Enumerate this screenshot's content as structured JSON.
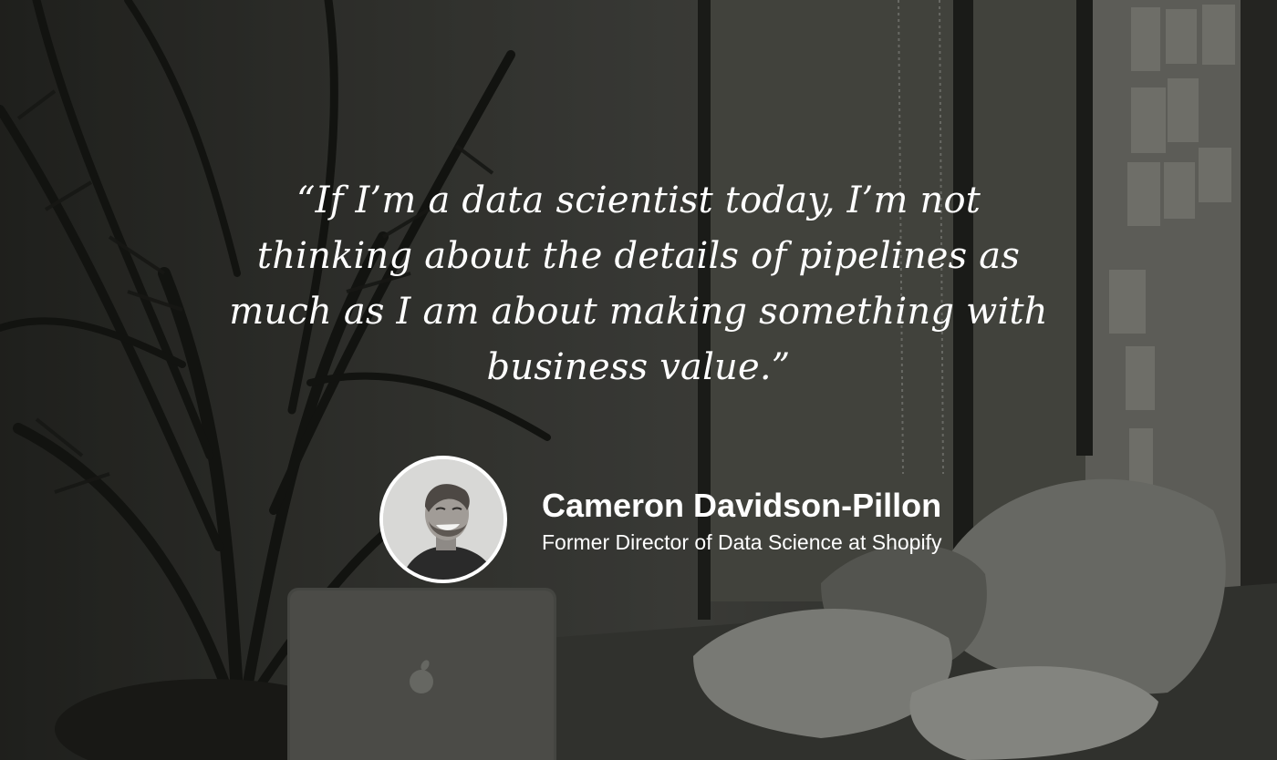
{
  "quote": {
    "text": "“If I’m a data scientist today, I’m not thinking about the details of pipelines as much as I am about making something with business value.”"
  },
  "author": {
    "name": "Cameron Davidson-Pillon",
    "role": "Former Director of Data Science at Shopify"
  },
  "colors": {
    "text": "#ffffff",
    "background": "#3a3b37"
  },
  "icons": {
    "laptop_logo": "apple-logo-icon"
  }
}
